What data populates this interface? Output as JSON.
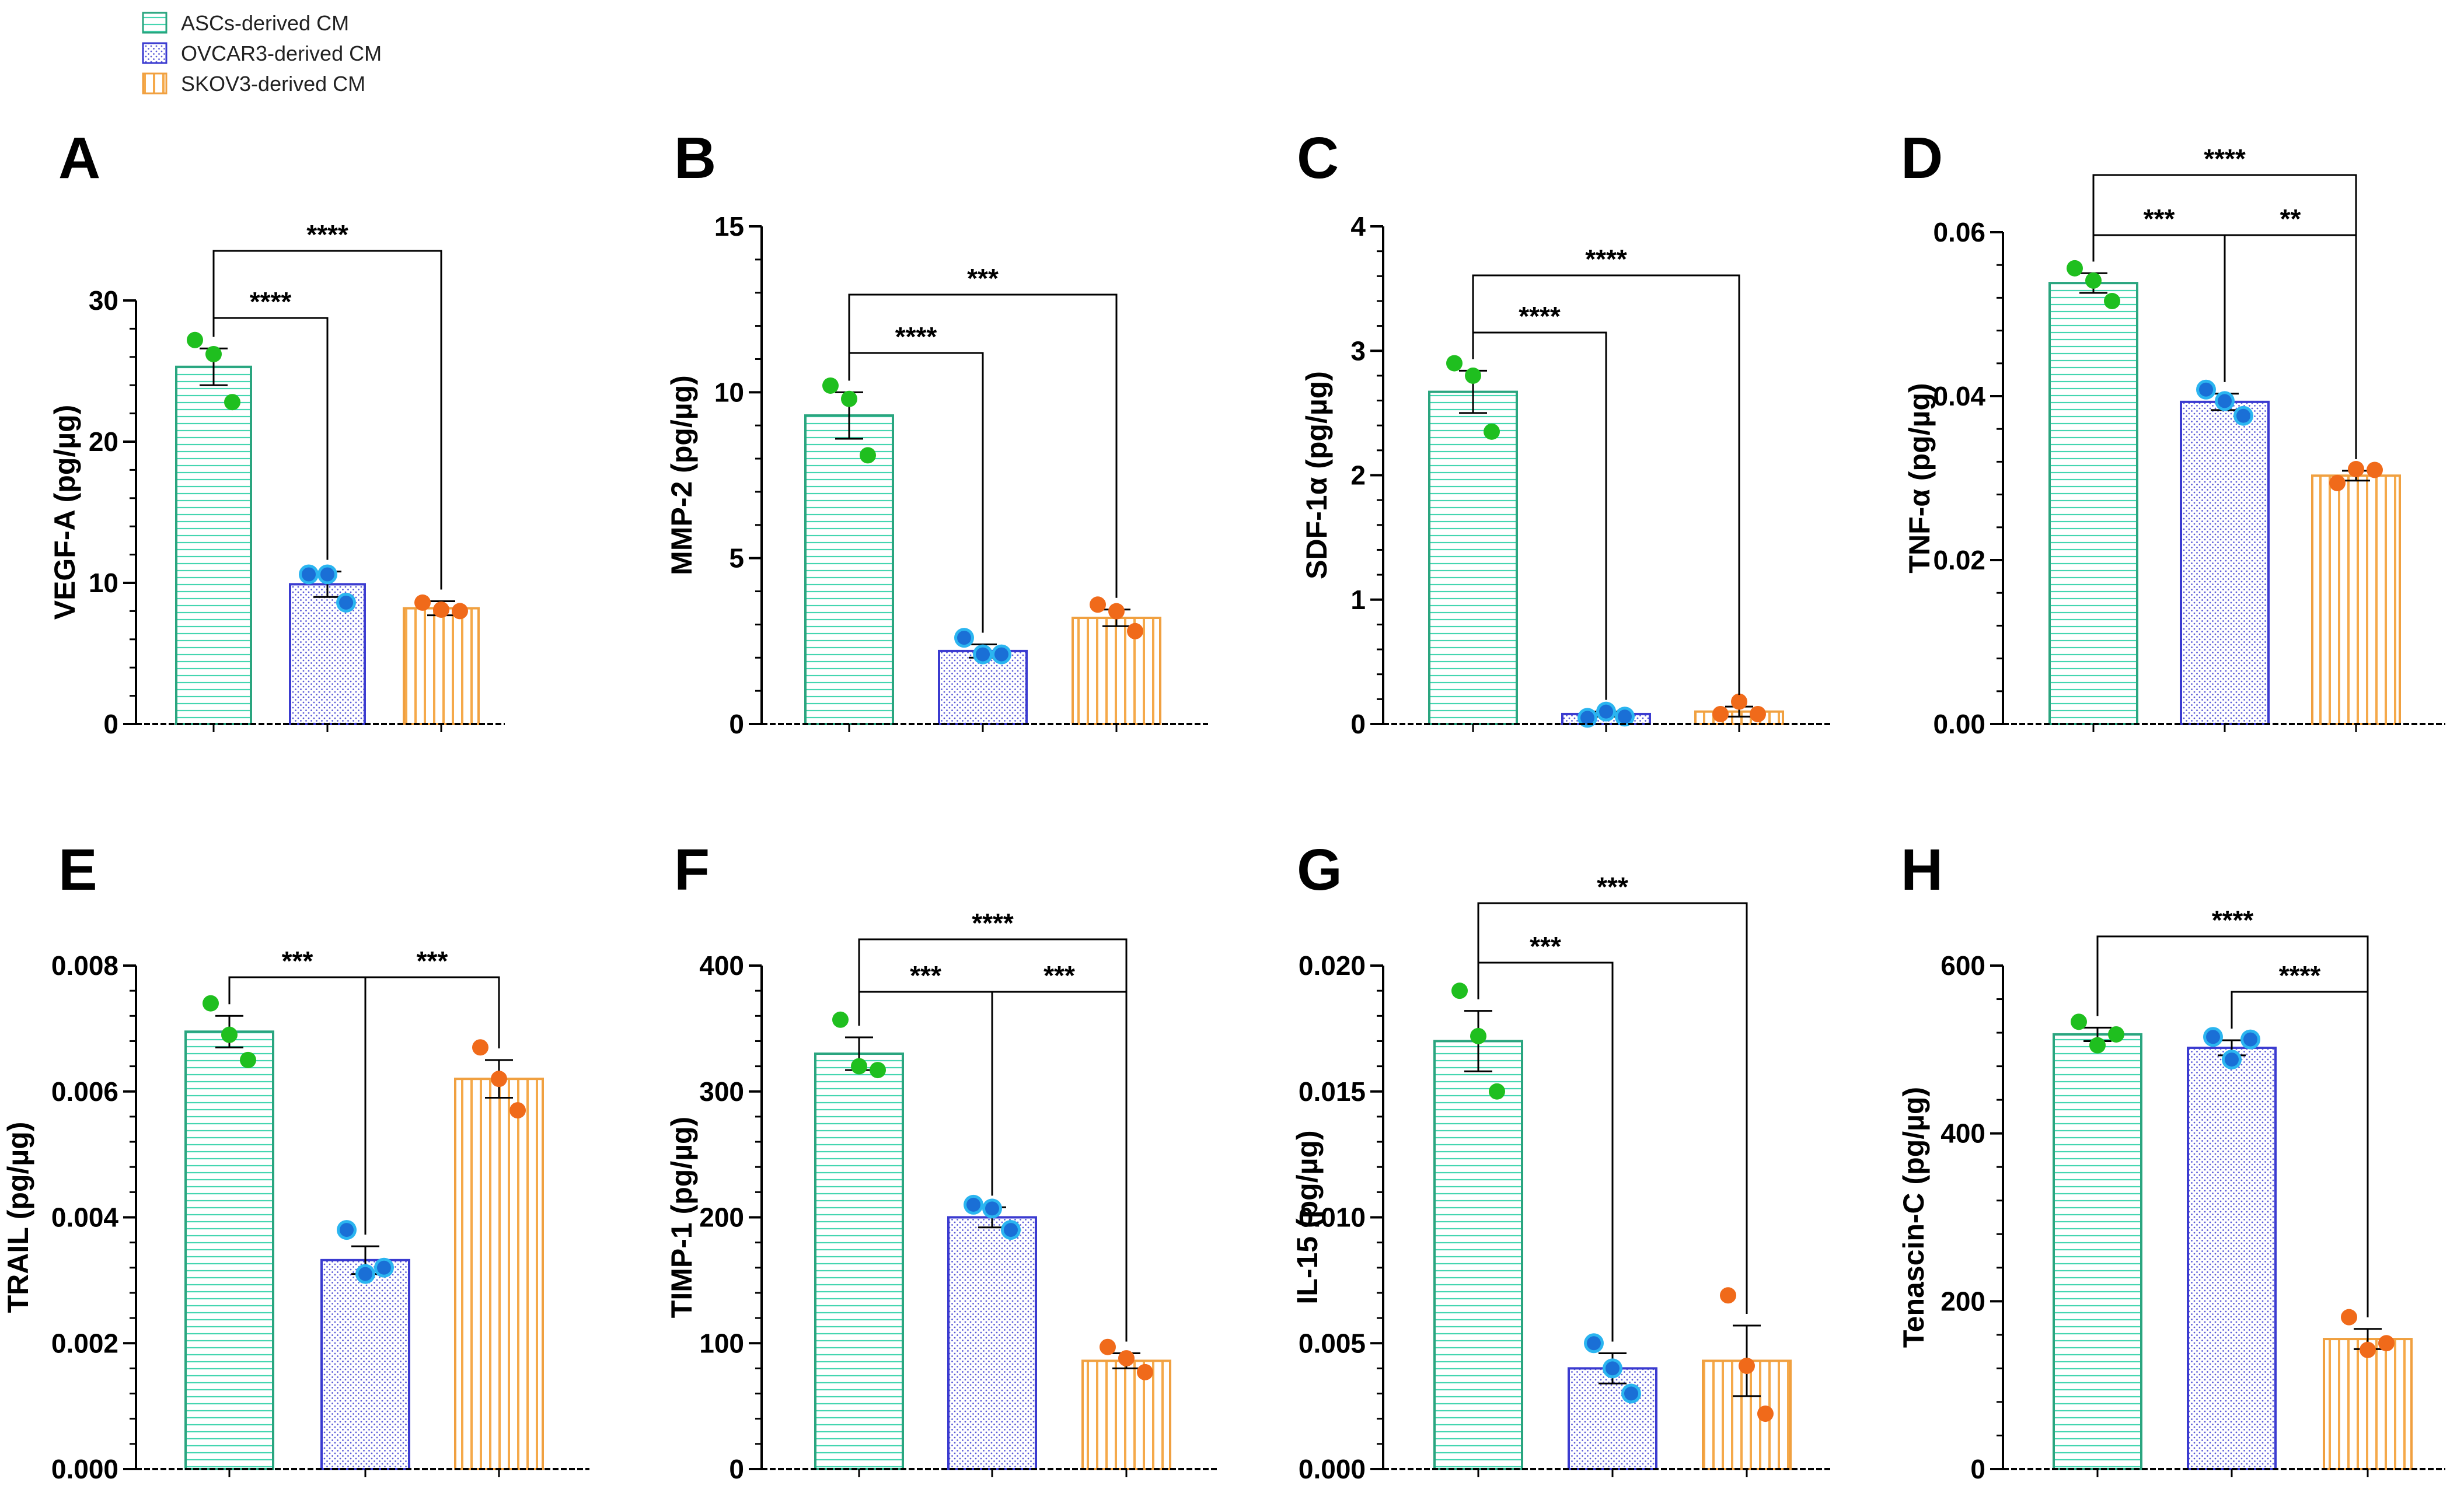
{
  "legend": [
    {
      "label": "ASCs-derived CM",
      "color": "#2aa57f",
      "pattern": "hlines"
    },
    {
      "label": "OVCAR3-derived CM",
      "color": "#3b3bd0",
      "pattern": "dots"
    },
    {
      "label": "SKOV3-derived CM",
      "color": "#f0a040",
      "pattern": "vlines"
    }
  ],
  "colors": {
    "asc_point": "#1fbf1f",
    "ovcar_point": "#1a6fd6",
    "ovcar_point_ring": "#2bb5f0",
    "skov_point": "#f06a1a",
    "axis": "#000000"
  },
  "chart_data": [
    {
      "panel": "A",
      "type": "bar",
      "ylabel": "VEGF-A (pg/µg)",
      "categories": [
        "ASCs-derived CM",
        "OVCAR3-derived CM",
        "SKOV3-derived CM"
      ],
      "values": [
        25.3,
        9.9,
        8.2
      ],
      "errors": [
        1.3,
        0.9,
        0.5
      ],
      "points": [
        [
          27.2,
          26.2,
          22.8
        ],
        [
          10.6,
          10.6,
          8.6
        ],
        [
          8.6,
          8.1,
          8.0
        ]
      ],
      "ylim": [
        0,
        30
      ],
      "yticks": [
        "0",
        "10",
        "20",
        "30"
      ],
      "sig": [
        {
          "from": 0,
          "to": 1,
          "label": "****"
        },
        {
          "from": 0,
          "to": 2,
          "label": "****"
        }
      ]
    },
    {
      "panel": "B",
      "type": "bar",
      "ylabel": "MMP-2 (pg/µg)",
      "categories": [
        "ASCs-derived CM",
        "OVCAR3-derived CM",
        "SKOV3-derived CM"
      ],
      "values": [
        9.3,
        2.2,
        3.2
      ],
      "errors": [
        0.7,
        0.2,
        0.25
      ],
      "points": [
        [
          10.2,
          9.8,
          8.1
        ],
        [
          2.6,
          2.1,
          2.1
        ],
        [
          3.6,
          3.4,
          2.8
        ]
      ],
      "ylim": [
        0,
        15
      ],
      "yticks": [
        "0",
        "5",
        "10",
        "15"
      ],
      "sig": [
        {
          "from": 0,
          "to": 1,
          "label": "****"
        },
        {
          "from": 0,
          "to": 2,
          "label": "***"
        }
      ]
    },
    {
      "panel": "C",
      "type": "bar",
      "ylabel": "SDF-1α (pg/µg)",
      "categories": [
        "ASCs-derived CM",
        "OVCAR3-derived CM",
        "SKOV3-derived CM"
      ],
      "values": [
        2.67,
        0.08,
        0.1
      ],
      "errors": [
        0.17,
        0.02,
        0.04
      ],
      "points": [
        [
          2.9,
          2.8,
          2.35
        ],
        [
          0.05,
          0.1,
          0.06
        ],
        [
          0.08,
          0.18,
          0.08
        ]
      ],
      "ylim": [
        0,
        4
      ],
      "yticks": [
        "0",
        "1",
        "2",
        "3",
        "4"
      ],
      "sig": [
        {
          "from": 0,
          "to": 1,
          "label": "****"
        },
        {
          "from": 0,
          "to": 2,
          "label": "****"
        }
      ]
    },
    {
      "panel": "D",
      "type": "bar",
      "ylabel": "TNF-α (pg/µg)",
      "categories": [
        "ASCs-derived CM",
        "OVCAR3-derived CM",
        "SKOV3-derived CM"
      ],
      "values": [
        0.0538,
        0.0393,
        0.0303
      ],
      "errors": [
        0.0012,
        0.001,
        0.0006
      ],
      "points": [
        [
          0.0556,
          0.0541,
          0.0516
        ],
        [
          0.0408,
          0.0394,
          0.0376
        ],
        [
          0.0294,
          0.0311,
          0.031
        ]
      ],
      "ylim": [
        0,
        0.06
      ],
      "yticks": [
        "0.00",
        "0.02",
        "0.04",
        "0.06"
      ],
      "sig": [
        {
          "from": 0,
          "to": 1,
          "label": "***"
        },
        {
          "from": 1,
          "to": 2,
          "label": "**"
        },
        {
          "from": 0,
          "to": 2,
          "label": "****"
        }
      ]
    },
    {
      "panel": "E",
      "type": "bar",
      "ylabel": "TRAIL (pg/µg)",
      "categories": [
        "ASCs-derived CM",
        "OVCAR3-derived CM",
        "SKOV3-derived CM"
      ],
      "values": [
        0.00695,
        0.00332,
        0.0062
      ],
      "errors": [
        0.00025,
        0.00022,
        0.0003
      ],
      "points": [
        [
          0.0074,
          0.0069,
          0.0065
        ],
        [
          0.0038,
          0.0031,
          0.0032
        ],
        [
          0.0067,
          0.0062,
          0.0057
        ]
      ],
      "ylim": [
        0,
        0.008
      ],
      "yticks": [
        "0.000",
        "0.002",
        "0.004",
        "0.006",
        "0.008"
      ],
      "sig": [
        {
          "from": 0,
          "to": 1,
          "label": "***"
        },
        {
          "from": 1,
          "to": 2,
          "label": "***"
        }
      ]
    },
    {
      "panel": "F",
      "type": "bar",
      "ylabel": "TIMP-1 (pg/µg)",
      "categories": [
        "ASCs-derived CM",
        "OVCAR3-derived CM",
        "SKOV3-derived CM"
      ],
      "values": [
        330,
        200,
        86
      ],
      "errors": [
        13,
        8,
        6
      ],
      "points": [
        [
          357,
          320,
          317
        ],
        [
          210,
          207,
          190
        ],
        [
          97,
          88,
          77
        ]
      ],
      "ylim": [
        0,
        400
      ],
      "yticks": [
        "0",
        "100",
        "200",
        "300",
        "400"
      ],
      "sig": [
        {
          "from": 0,
          "to": 1,
          "label": "***"
        },
        {
          "from": 1,
          "to": 2,
          "label": "***"
        },
        {
          "from": 0,
          "to": 2,
          "label": "****"
        }
      ]
    },
    {
      "panel": "G",
      "type": "bar",
      "ylabel": "IL-15 (pg/µg)",
      "categories": [
        "ASCs-derived CM",
        "OVCAR3-derived CM",
        "SKOV3-derived CM"
      ],
      "values": [
        0.017,
        0.004,
        0.0043
      ],
      "errors": [
        0.0012,
        0.0006,
        0.0014
      ],
      "points": [
        [
          0.019,
          0.0172,
          0.015
        ],
        [
          0.005,
          0.004,
          0.003
        ],
        [
          0.0069,
          0.0041,
          0.0022
        ]
      ],
      "ylim": [
        0,
        0.02
      ],
      "yticks": [
        "0.000",
        "0.005",
        "0.010",
        "0.015",
        "0.020"
      ],
      "sig": [
        {
          "from": 0,
          "to": 1,
          "label": "***"
        },
        {
          "from": 0,
          "to": 2,
          "label": "***"
        }
      ]
    },
    {
      "panel": "H",
      "type": "bar",
      "ylabel": "Tenascin-C (pg/µg)",
      "categories": [
        "ASCs-derived CM",
        "OVCAR3-derived CM",
        "SKOV3-derived CM"
      ],
      "values": [
        518,
        502,
        155
      ],
      "errors": [
        8,
        9,
        12
      ],
      "points": [
        [
          533,
          505,
          518
        ],
        [
          515,
          488,
          512
        ],
        [
          181,
          142,
          150
        ]
      ],
      "ylim": [
        0,
        600
      ],
      "yticks": [
        "0",
        "200",
        "400",
        "600"
      ],
      "sig": [
        {
          "from": 1,
          "to": 2,
          "label": "****"
        },
        {
          "from": 0,
          "to": 2,
          "label": "****"
        }
      ]
    }
  ]
}
